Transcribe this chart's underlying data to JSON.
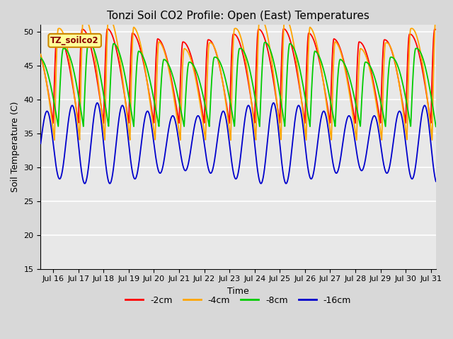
{
  "title": "Tonzi Soil CO2 Profile: Open (East) Temperatures",
  "xlabel": "Time",
  "ylabel": "Soil Temperature (C)",
  "ylim": [
    15,
    51
  ],
  "yticks": [
    15,
    20,
    25,
    30,
    35,
    40,
    45,
    50
  ],
  "xlim_days": [
    15.5,
    31.2
  ],
  "xtick_days": [
    16,
    17,
    18,
    19,
    20,
    21,
    22,
    23,
    24,
    25,
    26,
    27,
    28,
    29,
    30,
    31
  ],
  "xtick_labels": [
    "Jul 16",
    "Jul 17",
    "Jul 18",
    "Jul 19",
    "Jul 20",
    "Jul 21",
    "Jul 22",
    "Jul 23",
    "Jul 24",
    "Jul 25",
    "Jul 26",
    "Jul 27",
    "Jul 28",
    "Jul 29",
    "Jul 30",
    "Jul 31"
  ],
  "series": [
    {
      "name": "-2cm",
      "color": "#ff0000",
      "mean": 36.5,
      "amp": 13.0,
      "phase_day": 0.0,
      "skew": 0.35,
      "amp_mod_amp": 1.0,
      "amp_mod_period": 7.0
    },
    {
      "name": "-4cm",
      "color": "#ffa500",
      "mean": 34.0,
      "amp": 16.0,
      "phase_day": 0.05,
      "skew": 0.35,
      "amp_mod_amp": 2.5,
      "amp_mod_period": 7.0
    },
    {
      "name": "-8cm",
      "color": "#00cc00",
      "mean": 36.0,
      "amp": 11.0,
      "phase_day": 0.2,
      "skew": 0.3,
      "amp_mod_amp": 1.5,
      "amp_mod_period": 7.0
    },
    {
      "name": "-16cm",
      "color": "#0000cc",
      "mean": 33.5,
      "amp": 5.0,
      "phase_day": 0.5,
      "skew": 0.0,
      "amp_mod_amp": 1.0,
      "amp_mod_period": 7.0
    }
  ],
  "legend_label": "TZ_soilco2",
  "legend_face": "#ffff99",
  "legend_edge": "#cc8800",
  "bg_color": "#d8d8d8",
  "plot_bg": "#e8e8e8",
  "grid_color": "#ffffff",
  "title_fontsize": 11,
  "label_fontsize": 9,
  "tick_fontsize": 8,
  "lw": 1.3
}
